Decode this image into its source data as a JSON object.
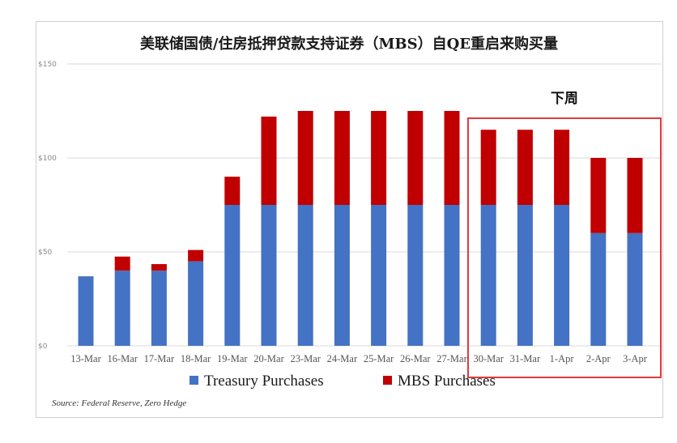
{
  "chart_data": {
    "type": "bar",
    "stacked": true,
    "title": "美联储国债/住房抵押贷款支持证券（MBS）自QE重启来购买量",
    "categories": [
      "13-Mar",
      "16-Mar",
      "17-Mar",
      "18-Mar",
      "19-Mar",
      "20-Mar",
      "23-Mar",
      "24-Mar",
      "25-Mar",
      "26-Mar",
      "27-Mar",
      "30-Mar",
      "31-Mar",
      "1-Apr",
      "2-Apr",
      "3-Apr"
    ],
    "series": [
      {
        "name": "Treasury Purchases",
        "color": "#4472c4",
        "values": [
          37,
          40,
          40,
          45,
          75,
          75,
          75,
          75,
          75,
          75,
          75,
          75,
          75,
          75,
          60,
          60
        ]
      },
      {
        "name": "MBS Purchases",
        "color": "#c00000",
        "values": [
          0,
          7.5,
          3.5,
          6,
          15,
          47,
          50,
          50,
          50,
          50,
          50,
          40,
          40,
          40,
          40,
          40
        ]
      }
    ],
    "y_ticks": [
      "$0",
      "$50",
      "$100",
      "$150"
    ],
    "ylim": [
      0,
      150
    ],
    "grid": true,
    "legend_position": "bottom",
    "annotation": {
      "text": "下周",
      "highlight_start": "30-Mar",
      "highlight_end": "3-Apr",
      "highlight_color": "#e03c3c"
    },
    "source": "Source: Federal Reserve, Zero Hedge"
  }
}
